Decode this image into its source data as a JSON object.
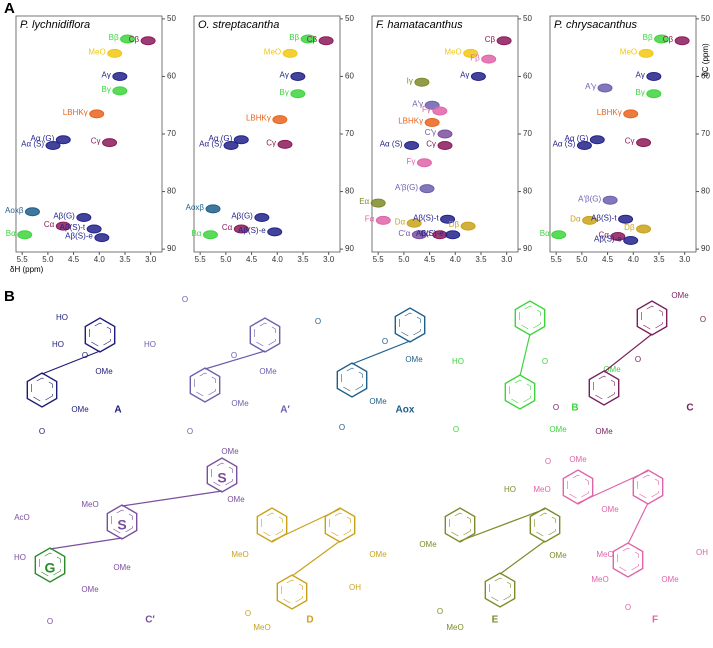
{
  "panel_a": {
    "label": "A",
    "x_label": "δH (ppm)",
    "y_label": "δC (ppm)",
    "xlim": [
      5.62,
      2.78
    ],
    "ylim": [
      49.5,
      90.5
    ],
    "xticks": [
      5.5,
      {
        "value": 5,
        "label": "5.0"
      },
      4.5,
      {
        "value": 4,
        "label": "4.0"
      },
      3.5,
      {
        "value": 3,
        "label": "3.0"
      }
    ],
    "yticks": [
      50,
      60,
      70,
      80,
      90
    ],
    "spectra": [
      {
        "title": "P. lychnidiflora",
        "peaks": [
          {
            "label": "MeO",
            "color": "#f2c80f",
            "x": 3.7,
            "y": 56
          },
          {
            "label": "Bβ",
            "color": "#3ed43e",
            "x": 3.45,
            "y": 53.5
          },
          {
            "label": "Cβ",
            "color": "#8b1a5a",
            "x": 3.05,
            "y": 53.8
          },
          {
            "label": "Aγ",
            "color": "#22228a",
            "x": 3.6,
            "y": 60
          },
          {
            "label": "Bγ",
            "color": "#3ed43e",
            "x": 3.6,
            "y": 62.5
          },
          {
            "label": "LBHKγ",
            "color": "#e8641e",
            "x": 4.05,
            "y": 66.5
          },
          {
            "label": "Aα (S)",
            "color": "#22228a",
            "x": 4.9,
            "y": 72
          },
          {
            "label": "Aα (G)",
            "color": "#22228a",
            "x": 4.7,
            "y": 71
          },
          {
            "label": "Cγ",
            "color": "#8b1a5a",
            "x": 3.8,
            "y": 71.5
          },
          {
            "label": "Aoxβ",
            "color": "#1e5f8c",
            "x": 5.3,
            "y": 83.5
          },
          {
            "label": "Cα",
            "color": "#8b1a5a",
            "x": 4.7,
            "y": 86
          },
          {
            "label": "Aβ(G)",
            "color": "#22228a",
            "x": 4.3,
            "y": 84.5
          },
          {
            "label": "Aβ(S)-t",
            "color": "#22228a",
            "x": 4.1,
            "y": 86.5
          },
          {
            "label": "Aβ(S)-e",
            "color": "#22228a",
            "x": 3.95,
            "y": 88
          },
          {
            "label": "Bα",
            "color": "#3ed43e",
            "x": 5.45,
            "y": 87.5
          }
        ]
      },
      {
        "title": "O. streptacantha",
        "peaks": [
          {
            "label": "MeO",
            "color": "#f2c80f",
            "x": 3.75,
            "y": 56
          },
          {
            "label": "Bβ",
            "color": "#3ed43e",
            "x": 3.4,
            "y": 53.5
          },
          {
            "label": "Cβ",
            "color": "#8b1a5a",
            "x": 3.05,
            "y": 53.8
          },
          {
            "label": "Aγ",
            "color": "#22228a",
            "x": 3.6,
            "y": 60
          },
          {
            "label": "Bγ",
            "color": "#3ed43e",
            "x": 3.6,
            "y": 63
          },
          {
            "label": "LBHKγ",
            "color": "#e8641e",
            "x": 3.95,
            "y": 67.5
          },
          {
            "label": "Aα (S)",
            "color": "#22228a",
            "x": 4.9,
            "y": 72
          },
          {
            "label": "Aα (G)",
            "color": "#22228a",
            "x": 4.7,
            "y": 71
          },
          {
            "label": "Cγ",
            "color": "#8b1a5a",
            "x": 3.85,
            "y": 71.8
          },
          {
            "label": "Aoxβ",
            "color": "#1e5f8c",
            "x": 5.25,
            "y": 83
          },
          {
            "label": "Bα",
            "color": "#3ed43e",
            "x": 5.3,
            "y": 87.5
          },
          {
            "label": "Cα",
            "color": "#8b1a5a",
            "x": 4.7,
            "y": 86.5
          },
          {
            "label": "Aβ(G)",
            "color": "#22228a",
            "x": 4.3,
            "y": 84.5
          },
          {
            "label": "Aβ(S)-e",
            "color": "#22228a",
            "x": 4.05,
            "y": 87
          }
        ]
      },
      {
        "title": "F. hamatacanthus",
        "peaks": [
          {
            "label": "MeO",
            "color": "#f2c80f",
            "x": 3.7,
            "y": 56
          },
          {
            "label": "Cβ",
            "color": "#8b1a5a",
            "x": 3.05,
            "y": 53.8
          },
          {
            "label": "Fβ",
            "color": "#e064a8",
            "x": 3.35,
            "y": 57
          },
          {
            "label": "Aγ",
            "color": "#22228a",
            "x": 3.55,
            "y": 60
          },
          {
            "label": "Iγ",
            "color": "#7f8a2a",
            "x": 4.65,
            "y": 61
          },
          {
            "label": "A′γ",
            "color": "#6b5fae",
            "x": 4.45,
            "y": 65
          },
          {
            "label": "Fγ",
            "color": "#e064a8",
            "x": 4.3,
            "y": 66
          },
          {
            "label": "LBHKγ",
            "color": "#e8641e",
            "x": 4.45,
            "y": 68
          },
          {
            "label": "Aα (S)",
            "color": "#22228a",
            "x": 4.85,
            "y": 72
          },
          {
            "label": "C′γ",
            "color": "#7a4f9e",
            "x": 4.2,
            "y": 70
          },
          {
            "label": "Cγ",
            "color": "#8b1a5a",
            "x": 4.2,
            "y": 72
          },
          {
            "label": "Fγ",
            "color": "#e064a8",
            "x": 4.6,
            "y": 75
          },
          {
            "label": "Eα",
            "color": "#7f8a2a",
            "x": 5.5,
            "y": 82
          },
          {
            "label": "A′β(G)",
            "color": "#6b5fae",
            "x": 4.55,
            "y": 79.5
          },
          {
            "label": "Fα",
            "color": "#e064a8",
            "x": 5.4,
            "y": 85
          },
          {
            "label": "Dα",
            "color": "#c9a21a",
            "x": 4.8,
            "y": 85.5
          },
          {
            "label": "C′α",
            "color": "#7a4f9e",
            "x": 4.7,
            "y": 87.5
          },
          {
            "label": "Cα",
            "color": "#8b1a5a",
            "x": 4.3,
            "y": 87.5
          },
          {
            "label": "Aβ(S)-t",
            "color": "#22228a",
            "x": 4.15,
            "y": 84.8
          },
          {
            "label": "Aβ(S)-e",
            "color": "#22228a",
            "x": 4.05,
            "y": 87.5
          },
          {
            "label": "Dβ",
            "color": "#c9a21a",
            "x": 3.75,
            "y": 86
          }
        ]
      },
      {
        "title": "P. chrysacanthus",
        "peaks": [
          {
            "label": "MeO",
            "color": "#f2c80f",
            "x": 3.75,
            "y": 56
          },
          {
            "label": "Bβ",
            "color": "#3ed43e",
            "x": 3.45,
            "y": 53.5
          },
          {
            "label": "Cβ",
            "color": "#8b1a5a",
            "x": 3.05,
            "y": 53.8
          },
          {
            "label": "Aγ",
            "color": "#22228a",
            "x": 3.6,
            "y": 60
          },
          {
            "label": "A′γ",
            "color": "#6b5fae",
            "x": 4.55,
            "y": 62
          },
          {
            "label": "Bγ",
            "color": "#3ed43e",
            "x": 3.6,
            "y": 63
          },
          {
            "label": "LBHKγ",
            "color": "#e8641e",
            "x": 4.05,
            "y": 66.5
          },
          {
            "label": "Aα (S)",
            "color": "#22228a",
            "x": 4.95,
            "y": 72
          },
          {
            "label": "Aα (G)",
            "color": "#22228a",
            "x": 4.7,
            "y": 71
          },
          {
            "label": "Cγ",
            "color": "#8b1a5a",
            "x": 3.8,
            "y": 71.5
          },
          {
            "label": "A′β(G)",
            "color": "#6b5fae",
            "x": 4.45,
            "y": 81.5
          },
          {
            "label": "Bα",
            "color": "#3ed43e",
            "x": 5.45,
            "y": 87.5
          },
          {
            "label": "Dα",
            "color": "#c9a21a",
            "x": 4.85,
            "y": 85
          },
          {
            "label": "Aβ(S)-t",
            "color": "#22228a",
            "x": 4.15,
            "y": 84.8
          },
          {
            "label": "Dβ",
            "color": "#c9a21a",
            "x": 3.8,
            "y": 86.5
          },
          {
            "label": "Cα",
            "color": "#8b1a5a",
            "x": 4.3,
            "y": 87.8
          },
          {
            "label": "Aβ(S)-e",
            "color": "#22228a",
            "x": 4.05,
            "y": 88.5
          }
        ]
      }
    ]
  },
  "panel_b": {
    "label": "B",
    "structures": [
      {
        "label": "A",
        "color": "#1c1c78",
        "atoms": [
          "HO",
          "HO",
          "O",
          "OMe",
          "OMe",
          "O"
        ]
      },
      {
        "label": "A′",
        "color": "#6b5fae",
        "atoms": [
          "O",
          "HO",
          "O",
          "OMe",
          "OMe",
          "O"
        ]
      },
      {
        "label": "Aox",
        "color": "#1e5f8c",
        "atoms": [
          "O",
          "O",
          "OMe",
          "OMe",
          "O"
        ]
      },
      {
        "label": "B",
        "color": "#3ed43e",
        "atoms": [
          "HO",
          "O",
          "OMe",
          "O",
          "OMe"
        ]
      },
      {
        "label": "C",
        "color": "#7a1f5c",
        "atoms": [
          "OMe",
          "O",
          "O",
          "O",
          "OMe"
        ]
      },
      {
        "label": "C′",
        "color": "#7a4f9e",
        "atoms": [
          "OMe",
          "S",
          "OMe",
          "AcO",
          "MeO",
          "S",
          "OMe",
          "HO",
          "G",
          "OMe",
          "O"
        ]
      },
      {
        "label": "D",
        "color": "#c9a21a",
        "atoms": [
          "MeO",
          "OMe",
          "OH",
          "MeO",
          "O"
        ]
      },
      {
        "label": "E",
        "color": "#7f8a2a",
        "atoms": [
          "OMe",
          "OMe",
          "HO",
          "MeO",
          "O"
        ]
      },
      {
        "label": "F",
        "color": "#e064a8",
        "atoms": [
          "O",
          "OMe",
          "MeO",
          "OMe",
          "MeO",
          "OH",
          "MeO",
          "OMe",
          "O"
        ]
      }
    ]
  }
}
